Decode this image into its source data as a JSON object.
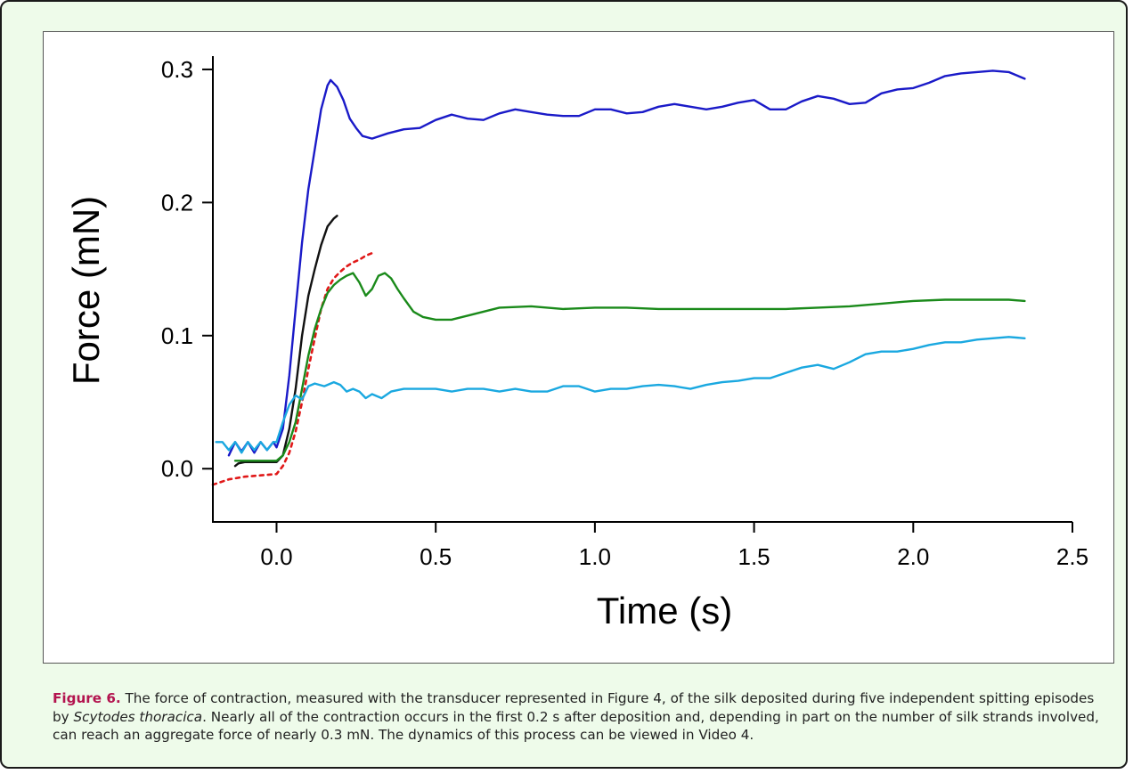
{
  "caption": {
    "label": "Figure 6.",
    "text_1": " The force of contraction, measured with the transducer represented in Figure 4, of the silk deposited during five independent spitting episodes by ",
    "species": "Scytodes thoracica",
    "text_2": ". Nearly all of the contraction occurs in the first 0.2 s after deposition and, depending in part on the number of silk strands involved, can reach an aggregate force of nearly 0.3 mN. The dynamics of this process can be viewed in Video 4."
  },
  "chart_data": {
    "type": "line",
    "title": "",
    "xlabel": "Time (s)",
    "ylabel": "Force (mN)",
    "xlim": [
      -0.2,
      2.5
    ],
    "ylim": [
      -0.04,
      0.31
    ],
    "x_ticks": [
      "0.0",
      "0.5",
      "1.0",
      "1.5",
      "2.0",
      "2.5"
    ],
    "y_ticks": [
      "0.0",
      "0.1",
      "0.2",
      "0.3"
    ],
    "grid": false,
    "legend": "none",
    "series": [
      {
        "color": "#1a1ac8",
        "style": "solid",
        "points": [
          [
            -0.15,
            0.01
          ],
          [
            -0.13,
            0.02
          ],
          [
            -0.11,
            0.013
          ],
          [
            -0.09,
            0.02
          ],
          [
            -0.07,
            0.012
          ],
          [
            -0.05,
            0.02
          ],
          [
            -0.03,
            0.014
          ],
          [
            -0.01,
            0.02
          ],
          [
            0.0,
            0.016
          ],
          [
            0.02,
            0.03
          ],
          [
            0.04,
            0.07
          ],
          [
            0.06,
            0.12
          ],
          [
            0.08,
            0.17
          ],
          [
            0.1,
            0.21
          ],
          [
            0.12,
            0.24
          ],
          [
            0.14,
            0.27
          ],
          [
            0.16,
            0.288
          ],
          [
            0.17,
            0.292
          ],
          [
            0.19,
            0.287
          ],
          [
            0.21,
            0.277
          ],
          [
            0.23,
            0.263
          ],
          [
            0.25,
            0.256
          ],
          [
            0.27,
            0.25
          ],
          [
            0.3,
            0.248
          ],
          [
            0.35,
            0.252
          ],
          [
            0.4,
            0.255
          ],
          [
            0.45,
            0.256
          ],
          [
            0.5,
            0.262
          ],
          [
            0.55,
            0.266
          ],
          [
            0.6,
            0.263
          ],
          [
            0.65,
            0.262
          ],
          [
            0.7,
            0.267
          ],
          [
            0.75,
            0.27
          ],
          [
            0.8,
            0.268
          ],
          [
            0.85,
            0.266
          ],
          [
            0.9,
            0.265
          ],
          [
            0.95,
            0.265
          ],
          [
            1.0,
            0.27
          ],
          [
            1.05,
            0.27
          ],
          [
            1.1,
            0.267
          ],
          [
            1.15,
            0.268
          ],
          [
            1.2,
            0.272
          ],
          [
            1.25,
            0.274
          ],
          [
            1.3,
            0.272
          ],
          [
            1.35,
            0.27
          ],
          [
            1.4,
            0.272
          ],
          [
            1.45,
            0.275
          ],
          [
            1.5,
            0.277
          ],
          [
            1.55,
            0.27
          ],
          [
            1.6,
            0.27
          ],
          [
            1.65,
            0.276
          ],
          [
            1.7,
            0.28
          ],
          [
            1.75,
            0.278
          ],
          [
            1.8,
            0.274
          ],
          [
            1.85,
            0.275
          ],
          [
            1.9,
            0.282
          ],
          [
            1.95,
            0.285
          ],
          [
            2.0,
            0.286
          ],
          [
            2.05,
            0.29
          ],
          [
            2.1,
            0.295
          ],
          [
            2.15,
            0.297
          ],
          [
            2.2,
            0.298
          ],
          [
            2.25,
            0.299
          ],
          [
            2.3,
            0.298
          ],
          [
            2.35,
            0.293
          ]
        ]
      },
      {
        "color": "#111111",
        "style": "solid",
        "points": [
          [
            -0.13,
            0.002
          ],
          [
            -0.12,
            0.004
          ],
          [
            -0.1,
            0.005
          ],
          [
            -0.05,
            0.005
          ],
          [
            0.0,
            0.005
          ],
          [
            0.02,
            0.01
          ],
          [
            0.04,
            0.03
          ],
          [
            0.06,
            0.06
          ],
          [
            0.08,
            0.1
          ],
          [
            0.1,
            0.13
          ],
          [
            0.12,
            0.15
          ],
          [
            0.14,
            0.168
          ],
          [
            0.16,
            0.182
          ],
          [
            0.18,
            0.188
          ],
          [
            0.19,
            0.19
          ]
        ]
      },
      {
        "color": "#e01818",
        "style": "dashed",
        "points": [
          [
            -0.2,
            -0.012
          ],
          [
            -0.15,
            -0.008
          ],
          [
            -0.1,
            -0.006
          ],
          [
            -0.05,
            -0.005
          ],
          [
            0.0,
            -0.004
          ],
          [
            0.02,
            0.002
          ],
          [
            0.04,
            0.012
          ],
          [
            0.06,
            0.028
          ],
          [
            0.08,
            0.05
          ],
          [
            0.1,
            0.075
          ],
          [
            0.12,
            0.098
          ],
          [
            0.14,
            0.12
          ],
          [
            0.16,
            0.135
          ],
          [
            0.18,
            0.143
          ],
          [
            0.2,
            0.148
          ],
          [
            0.22,
            0.152
          ],
          [
            0.24,
            0.155
          ],
          [
            0.26,
            0.157
          ],
          [
            0.28,
            0.16
          ],
          [
            0.3,
            0.162
          ],
          [
            0.31,
            0.163
          ]
        ]
      },
      {
        "color": "#1a8a1a",
        "style": "solid",
        "points": [
          [
            -0.13,
            0.006
          ],
          [
            -0.1,
            0.006
          ],
          [
            -0.05,
            0.006
          ],
          [
            0.0,
            0.006
          ],
          [
            0.02,
            0.01
          ],
          [
            0.04,
            0.02
          ],
          [
            0.06,
            0.035
          ],
          [
            0.08,
            0.06
          ],
          [
            0.1,
            0.085
          ],
          [
            0.12,
            0.105
          ],
          [
            0.14,
            0.12
          ],
          [
            0.16,
            0.132
          ],
          [
            0.18,
            0.138
          ],
          [
            0.2,
            0.142
          ],
          [
            0.22,
            0.145
          ],
          [
            0.24,
            0.147
          ],
          [
            0.26,
            0.14
          ],
          [
            0.28,
            0.13
          ],
          [
            0.3,
            0.135
          ],
          [
            0.32,
            0.145
          ],
          [
            0.34,
            0.147
          ],
          [
            0.36,
            0.143
          ],
          [
            0.38,
            0.135
          ],
          [
            0.4,
            0.128
          ],
          [
            0.43,
            0.118
          ],
          [
            0.46,
            0.114
          ],
          [
            0.5,
            0.112
          ],
          [
            0.55,
            0.112
          ],
          [
            0.6,
            0.115
          ],
          [
            0.65,
            0.118
          ],
          [
            0.7,
            0.121
          ],
          [
            0.8,
            0.122
          ],
          [
            0.9,
            0.12
          ],
          [
            1.0,
            0.121
          ],
          [
            1.1,
            0.121
          ],
          [
            1.2,
            0.12
          ],
          [
            1.3,
            0.12
          ],
          [
            1.4,
            0.12
          ],
          [
            1.5,
            0.12
          ],
          [
            1.6,
            0.12
          ],
          [
            1.7,
            0.121
          ],
          [
            1.8,
            0.122
          ],
          [
            1.9,
            0.124
          ],
          [
            2.0,
            0.126
          ],
          [
            2.1,
            0.127
          ],
          [
            2.2,
            0.127
          ],
          [
            2.3,
            0.127
          ],
          [
            2.35,
            0.126
          ]
        ]
      },
      {
        "color": "#1aa8e0",
        "style": "solid",
        "points": [
          [
            -0.19,
            0.02
          ],
          [
            -0.17,
            0.02
          ],
          [
            -0.15,
            0.014
          ],
          [
            -0.13,
            0.02
          ],
          [
            -0.11,
            0.012
          ],
          [
            -0.09,
            0.02
          ],
          [
            -0.07,
            0.014
          ],
          [
            -0.05,
            0.02
          ],
          [
            -0.03,
            0.014
          ],
          [
            -0.01,
            0.02
          ],
          [
            0.0,
            0.02
          ],
          [
            0.02,
            0.035
          ],
          [
            0.04,
            0.048
          ],
          [
            0.06,
            0.055
          ],
          [
            0.08,
            0.052
          ],
          [
            0.1,
            0.062
          ],
          [
            0.12,
            0.064
          ],
          [
            0.15,
            0.062
          ],
          [
            0.18,
            0.065
          ],
          [
            0.2,
            0.063
          ],
          [
            0.22,
            0.058
          ],
          [
            0.24,
            0.06
          ],
          [
            0.26,
            0.058
          ],
          [
            0.28,
            0.053
          ],
          [
            0.3,
            0.056
          ],
          [
            0.33,
            0.053
          ],
          [
            0.36,
            0.058
          ],
          [
            0.4,
            0.06
          ],
          [
            0.45,
            0.06
          ],
          [
            0.5,
            0.06
          ],
          [
            0.55,
            0.058
          ],
          [
            0.6,
            0.06
          ],
          [
            0.65,
            0.06
          ],
          [
            0.7,
            0.058
          ],
          [
            0.75,
            0.06
          ],
          [
            0.8,
            0.058
          ],
          [
            0.85,
            0.058
          ],
          [
            0.9,
            0.062
          ],
          [
            0.95,
            0.062
          ],
          [
            1.0,
            0.058
          ],
          [
            1.05,
            0.06
          ],
          [
            1.1,
            0.06
          ],
          [
            1.15,
            0.062
          ],
          [
            1.2,
            0.063
          ],
          [
            1.25,
            0.062
          ],
          [
            1.3,
            0.06
          ],
          [
            1.35,
            0.063
          ],
          [
            1.4,
            0.065
          ],
          [
            1.45,
            0.066
          ],
          [
            1.5,
            0.068
          ],
          [
            1.55,
            0.068
          ],
          [
            1.6,
            0.072
          ],
          [
            1.65,
            0.076
          ],
          [
            1.7,
            0.078
          ],
          [
            1.75,
            0.075
          ],
          [
            1.8,
            0.08
          ],
          [
            1.85,
            0.086
          ],
          [
            1.9,
            0.088
          ],
          [
            1.95,
            0.088
          ],
          [
            2.0,
            0.09
          ],
          [
            2.05,
            0.093
          ],
          [
            2.1,
            0.095
          ],
          [
            2.15,
            0.095
          ],
          [
            2.2,
            0.097
          ],
          [
            2.25,
            0.098
          ],
          [
            2.3,
            0.099
          ],
          [
            2.35,
            0.098
          ]
        ]
      }
    ]
  }
}
